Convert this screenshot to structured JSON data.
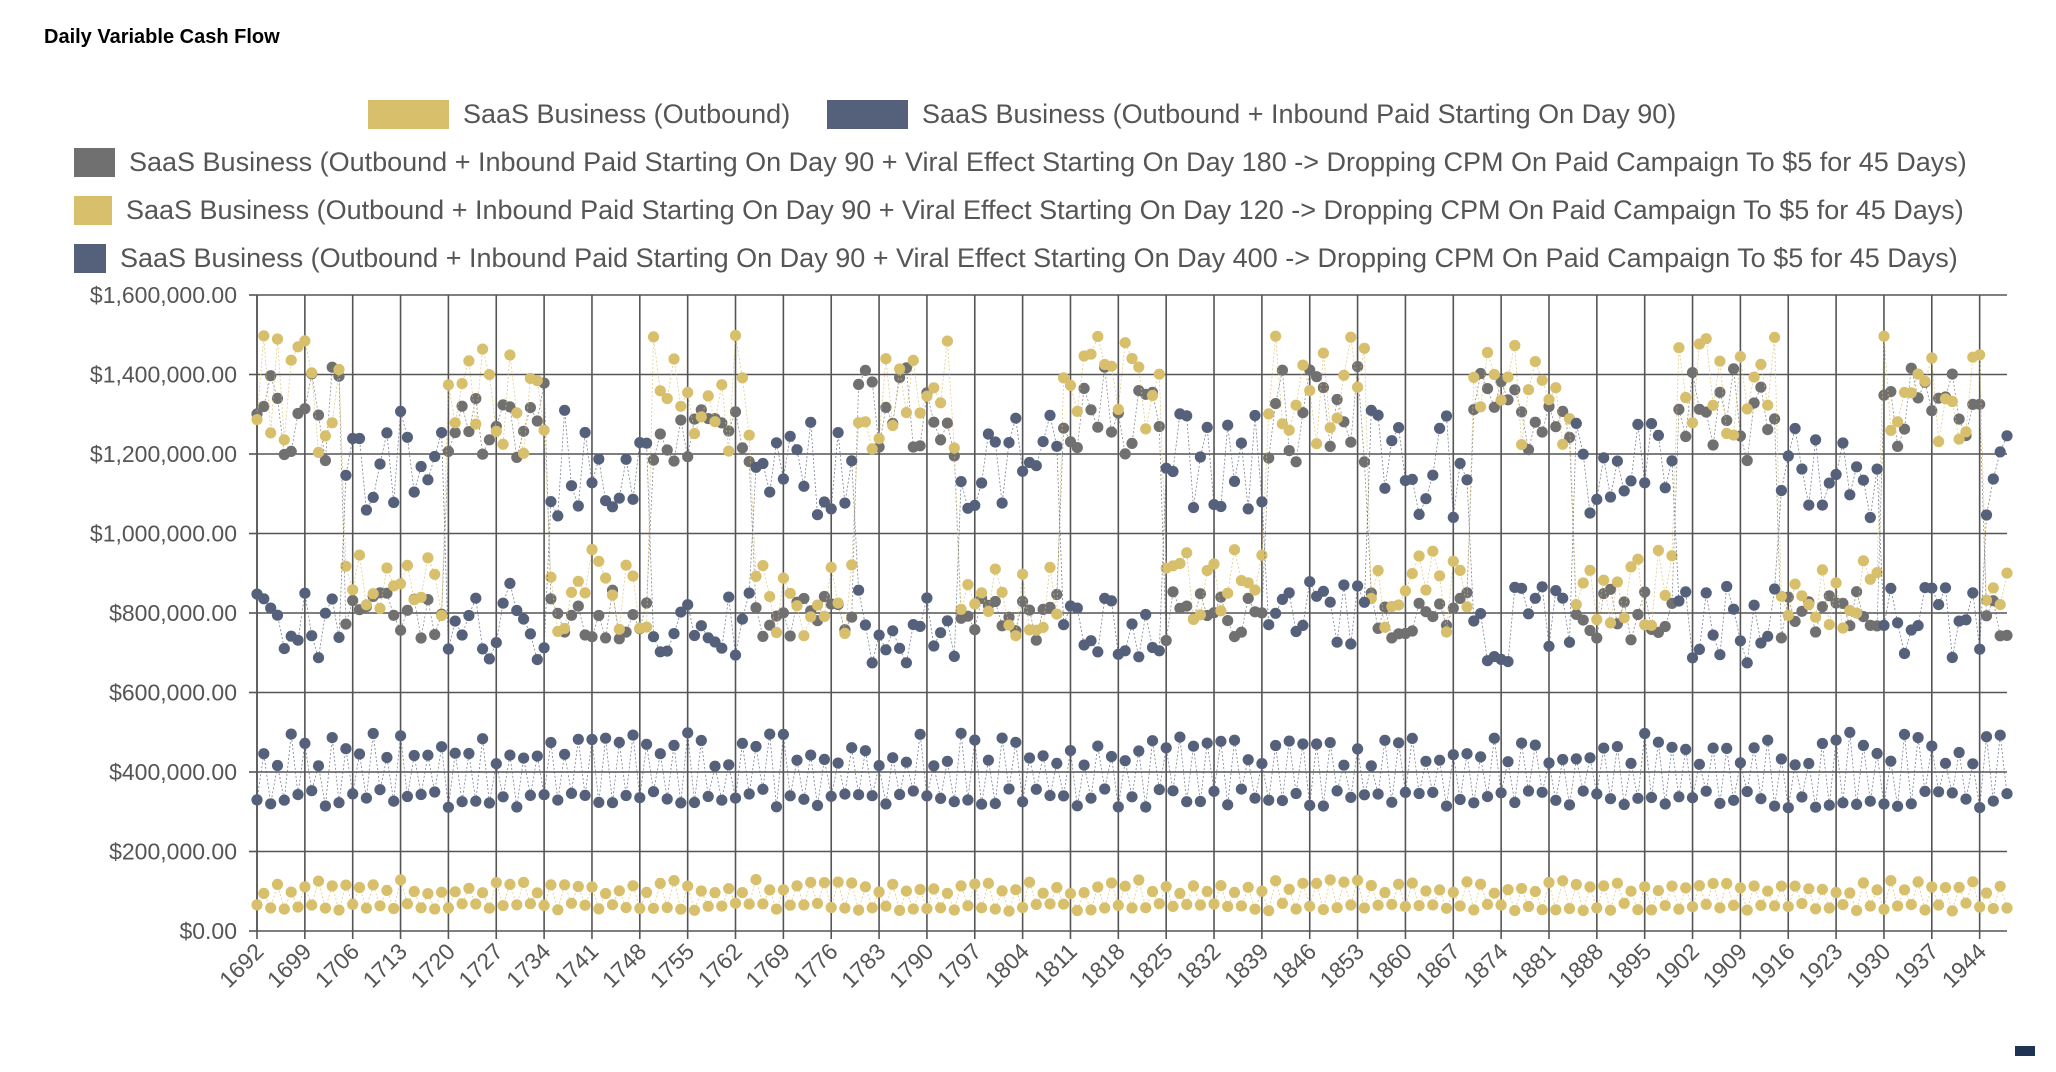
{
  "page": {
    "title": "Daily Variable Cash Flow"
  },
  "colors": {
    "gold": "#d8bf6b",
    "slate": "#55607a",
    "gray": "#707070",
    "grid": "#555555",
    "marker": "#1f3352"
  },
  "chart_data": {
    "type": "scatter",
    "title": "",
    "xlabel": "",
    "ylabel": "",
    "grid": true,
    "legend_position": "top",
    "x_range": [
      1692,
      1948
    ],
    "ylim": [
      0,
      1600000
    ],
    "y_ticks": [
      0,
      200000,
      400000,
      600000,
      800000,
      1000000,
      1200000,
      1400000,
      1600000
    ],
    "y_tick_labels": [
      "$0.00",
      "$200,000.00",
      "$400,000.00",
      "$600,000.00",
      "$800,000.00",
      "$1,000,000.00",
      "$1,200,000.00",
      "$1,400,000.00",
      "$1,600,000.00"
    ],
    "x_tick_labels": [
      "1692",
      "1699",
      "1706",
      "1713",
      "1720",
      "1727",
      "1734",
      "1741",
      "1748",
      "1755",
      "1762",
      "1769",
      "1776",
      "1783",
      "1790",
      "1797",
      "1804",
      "1811",
      "1818",
      "1825",
      "1832",
      "1839",
      "1846",
      "1853",
      "1860",
      "1867",
      "1874",
      "1881",
      "1888",
      "1895",
      "1902",
      "1909",
      "1916",
      "1923",
      "1930",
      "1937",
      "1944"
    ],
    "series": [
      {
        "name": "SaaS Business (Outbound)",
        "color": "#d8bf6b",
        "model": {
          "kind": "noise",
          "low": 50000,
          "high": 130000
        }
      },
      {
        "name": "SaaS Business (Outbound + Inbound Paid Starting On Day 90)",
        "color": "#55607a",
        "model": {
          "kind": "noise",
          "low": 310000,
          "high": 500000
        }
      },
      {
        "name": "SaaS Business (Outbound + Inbound Paid Starting On Day 90 + Viral Effect Starting On Day 180 -> Dropping CPM On Paid Campaign To $5 for 45 Days)",
        "color": "#707070",
        "model": {
          "kind": "square",
          "period": 30,
          "high_len": 15,
          "phase": 2,
          "low": [
            730000,
            860000
          ],
          "high": [
            1180000,
            1420000
          ]
        }
      },
      {
        "name": "SaaS Business (Outbound + Inbound Paid Starting On Day 90 + Viral Effect Starting On Day 120 -> Dropping CPM On Paid Campaign To $5 for 45 Days)",
        "color": "#d8bf6b",
        "model": {
          "kind": "square",
          "period": 30,
          "high_len": 15,
          "phase": 2,
          "low": [
            740000,
            960000
          ],
          "high": [
            1200000,
            1500000
          ]
        }
      },
      {
        "name": "SaaS Business (Outbound + Inbound Paid Starting On Day 90 + Viral Effect Starting On Day 400 -> Dropping CPM On Paid Campaign To $5 for 45 Days)",
        "color": "#55607a",
        "model": {
          "kind": "square",
          "period": 30,
          "high_len": 15,
          "phase": 17,
          "low": [
            670000,
            880000
          ],
          "high": [
            1040000,
            1310000
          ]
        }
      }
    ]
  }
}
